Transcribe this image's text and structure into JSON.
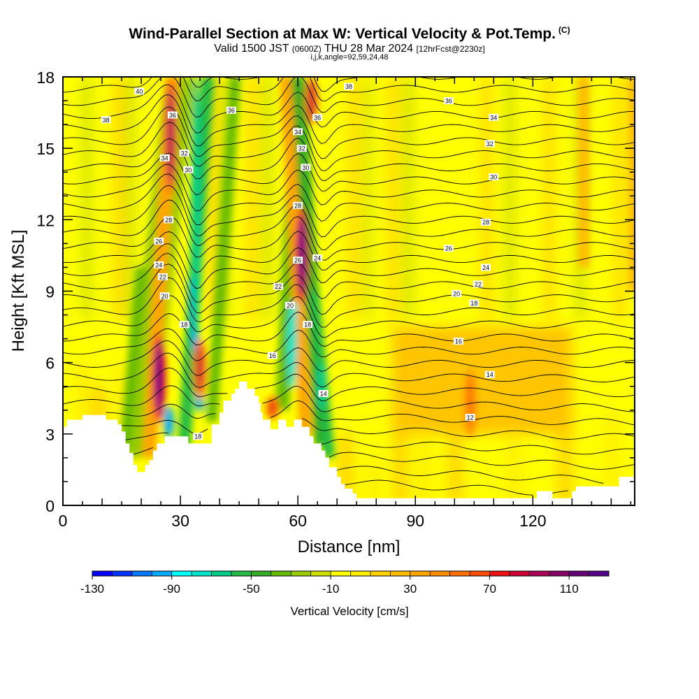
{
  "header": {
    "title": "Wind-Parallel Section at Max W: Vertical Velocity & Pot.Temp.",
    "copyright": "(C)",
    "subtitle_valid": "Valid 1500 JST",
    "subtitle_zulu": "(0600Z)",
    "subtitle_date": "THU 28 Mar 2024",
    "subtitle_fcst": "[12hrFcst@2230z]",
    "index_line": "i,j,k,angle=92,59,24,48"
  },
  "chart_data": {
    "type": "heatmap",
    "title": "Wind-Parallel Section at Max W: Vertical Velocity & Pot.Temp.",
    "xlabel": "Distance [nm]",
    "ylabel": "Height [Kft MSL]",
    "xlim": [
      0,
      146
    ],
    "ylim": [
      0,
      18
    ],
    "x_ticks": [
      "0",
      "30",
      "60",
      "90",
      "120"
    ],
    "x_tick_values": [
      0,
      30,
      60,
      90,
      120
    ],
    "y_ticks": [
      "0",
      "3",
      "6",
      "9",
      "12",
      "15",
      "18"
    ],
    "y_tick_values": [
      0,
      3,
      6,
      9,
      12,
      15,
      18
    ],
    "colorbar": {
      "label": "Vertical Velocity [cm/s]",
      "min": -130,
      "max": 130,
      "step": 10,
      "tick_labels": [
        "-130",
        "-90",
        "-50",
        "-10",
        "30",
        "70",
        "110"
      ],
      "tick_values": [
        -130,
        -90,
        -50,
        -10,
        30,
        70,
        110
      ],
      "colors": [
        "#0000ff",
        "#0033ff",
        "#0077ff",
        "#00aaff",
        "#00ffff",
        "#00e5c8",
        "#00cc88",
        "#22bb44",
        "#33aa22",
        "#66bb00",
        "#99cc00",
        "#ccdd00",
        "#ffff00",
        "#ffee00",
        "#ffd000",
        "#ffbb00",
        "#ffa500",
        "#ff8c00",
        "#ff7000",
        "#ff4d00",
        "#ee1111",
        "#cc0033",
        "#aa0055",
        "#880066",
        "#660077",
        "#550088"
      ]
    },
    "terrain_kft": [
      [
        0,
        3.3
      ],
      [
        0.5,
        3.3
      ],
      [
        1,
        3.6
      ],
      [
        5,
        3.8
      ],
      [
        10,
        3.8
      ],
      [
        11,
        3.6
      ],
      [
        13,
        3.6
      ],
      [
        14,
        3.4
      ],
      [
        15,
        3.1
      ],
      [
        16,
        2.6
      ],
      [
        17,
        2.2
      ],
      [
        18,
        1.7
      ],
      [
        19,
        1.4
      ],
      [
        20,
        1.4
      ],
      [
        21,
        1.7
      ],
      [
        22,
        1.9
      ],
      [
        23,
        2.3
      ],
      [
        24,
        2.6
      ],
      [
        25,
        2.6
      ],
      [
        26,
        2.9
      ],
      [
        27,
        2.9
      ],
      [
        28,
        2.9
      ],
      [
        29,
        2.9
      ],
      [
        30,
        2.9
      ],
      [
        31,
        2.9
      ],
      [
        32,
        2.6
      ],
      [
        33,
        2.6
      ],
      [
        34,
        2.6
      ],
      [
        35,
        2.6
      ],
      [
        36,
        2.6
      ],
      [
        37,
        2.6
      ],
      [
        38,
        3.4
      ],
      [
        40,
        3.9
      ],
      [
        41,
        4.4
      ],
      [
        42,
        4.4
      ],
      [
        43,
        4.7
      ],
      [
        44,
        4.9
      ],
      [
        45,
        5.2
      ],
      [
        46,
        5.2
      ],
      [
        47,
        4.9
      ],
      [
        48,
        4.9
      ],
      [
        49,
        4.6
      ],
      [
        50,
        4.3
      ],
      [
        50.5,
        3.9
      ],
      [
        51,
        3.6
      ],
      [
        52,
        3.6
      ],
      [
        53,
        3.2
      ],
      [
        54,
        3.2
      ],
      [
        55,
        3.6
      ],
      [
        56,
        3.6
      ],
      [
        57,
        3.3
      ],
      [
        58,
        3.3
      ],
      [
        59,
        3.6
      ],
      [
        60,
        3.6
      ],
      [
        61,
        3.3
      ],
      [
        62,
        3.3
      ],
      [
        63,
        2.9
      ],
      [
        64,
        2.6
      ],
      [
        65,
        2.6
      ],
      [
        66,
        2.3
      ],
      [
        67,
        2.0
      ],
      [
        68,
        1.6
      ],
      [
        69,
        1.6
      ],
      [
        70,
        1.2
      ],
      [
        71,
        0.9
      ],
      [
        72,
        0.7
      ],
      [
        74,
        0.5
      ],
      [
        75,
        0.3
      ],
      [
        105,
        0.3
      ],
      [
        106,
        0.3
      ],
      [
        120,
        0.3
      ],
      [
        121,
        0.6
      ],
      [
        122,
        0.6
      ],
      [
        123,
        0.6
      ],
      [
        124,
        0.6
      ],
      [
        125,
        0.3
      ],
      [
        129,
        0.3
      ],
      [
        130,
        0.6
      ],
      [
        131,
        0.8
      ],
      [
        132,
        0.8
      ],
      [
        134,
        0.8
      ],
      [
        140,
        0.8
      ],
      [
        142,
        1.2
      ],
      [
        146,
        1.2
      ]
    ],
    "theta_contour_labels": [
      {
        "label": "40",
        "x": 19.5,
        "y": 17.4
      },
      {
        "label": "38",
        "x": 11,
        "y": 16.2
      },
      {
        "label": "36",
        "x": 28,
        "y": 16.4
      },
      {
        "label": "34",
        "x": 26,
        "y": 14.6
      },
      {
        "label": "32",
        "x": 31,
        "y": 14.8
      },
      {
        "label": "30",
        "x": 32,
        "y": 14.1
      },
      {
        "label": "28",
        "x": 27,
        "y": 12.0
      },
      {
        "label": "26",
        "x": 24.5,
        "y": 11.1
      },
      {
        "label": "24",
        "x": 24.5,
        "y": 10.1
      },
      {
        "label": "22",
        "x": 25.5,
        "y": 9.6
      },
      {
        "label": "20",
        "x": 26,
        "y": 8.8
      },
      {
        "label": "18",
        "x": 31,
        "y": 7.6
      },
      {
        "label": "18",
        "x": 34.5,
        "y": 2.9
      },
      {
        "label": "36",
        "x": 43,
        "y": 16.6
      },
      {
        "label": "36",
        "x": 65,
        "y": 16.3
      },
      {
        "label": "34",
        "x": 60,
        "y": 15.7
      },
      {
        "label": "32",
        "x": 61,
        "y": 15.0
      },
      {
        "label": "30",
        "x": 62,
        "y": 14.2
      },
      {
        "label": "28",
        "x": 60,
        "y": 12.6
      },
      {
        "label": "26",
        "x": 60,
        "y": 10.3
      },
      {
        "label": "24",
        "x": 65,
        "y": 10.4
      },
      {
        "label": "22",
        "x": 55,
        "y": 9.2
      },
      {
        "label": "20",
        "x": 58,
        "y": 8.4
      },
      {
        "label": "18",
        "x": 62.5,
        "y": 7.6
      },
      {
        "label": "16",
        "x": 53.5,
        "y": 6.3
      },
      {
        "label": "14",
        "x": 66.5,
        "y": 4.7
      },
      {
        "label": "38",
        "x": 73,
        "y": 17.6
      },
      {
        "label": "36",
        "x": 98.5,
        "y": 17.0
      },
      {
        "label": "34",
        "x": 110,
        "y": 16.3
      },
      {
        "label": "32",
        "x": 109,
        "y": 15.2
      },
      {
        "label": "30",
        "x": 110,
        "y": 13.8
      },
      {
        "label": "28",
        "x": 108,
        "y": 11.9
      },
      {
        "label": "26",
        "x": 98.5,
        "y": 10.8
      },
      {
        "label": "24",
        "x": 108,
        "y": 10.0
      },
      {
        "label": "22",
        "x": 106,
        "y": 9.3
      },
      {
        "label": "20",
        "x": 100.5,
        "y": 8.9
      },
      {
        "label": "18",
        "x": 105,
        "y": 8.5
      },
      {
        "label": "16",
        "x": 101,
        "y": 6.9
      },
      {
        "label": "14",
        "x": 109,
        "y": 5.5
      },
      {
        "label": "12",
        "x": 104,
        "y": 3.7
      }
    ],
    "updraft_cores_cms": [
      {
        "x": 24.5,
        "y_from": 3.5,
        "y_to": 7.2,
        "peak": 120
      },
      {
        "x": 27.5,
        "y_from": 13.0,
        "y_to": 18.0,
        "peak": 90
      },
      {
        "x": 35,
        "y_from": 4.5,
        "y_to": 7.0,
        "peak": 80
      },
      {
        "x": 61,
        "y_from": 8.5,
        "y_to": 12.5,
        "peak": 120
      },
      {
        "x": 63.5,
        "y_from": 16.0,
        "y_to": 18.0,
        "peak": 80
      },
      {
        "x": 53.5,
        "y_from": 3.6,
        "y_to": 4.6,
        "peak": 70
      },
      {
        "x": 104,
        "y_from": 2.8,
        "y_to": 5.8,
        "peak": 50
      }
    ],
    "downdraft_cores_cms": [
      {
        "x": 27,
        "y_from": 2.8,
        "y_to": 4.2,
        "peak": -100
      },
      {
        "x": 34,
        "y_from": 7.0,
        "y_to": 18.0,
        "peak": -70
      },
      {
        "x": 58.5,
        "y_from": 5.0,
        "y_to": 8.5,
        "peak": -80
      },
      {
        "x": 66,
        "y_from": 4.0,
        "y_to": 6.0,
        "peak": -70
      }
    ]
  }
}
